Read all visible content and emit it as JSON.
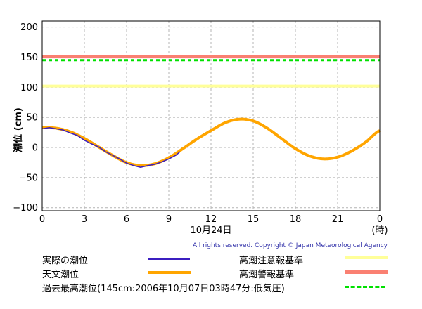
{
  "chart_data": {
    "type": "line",
    "ylabel": "潮位 (cm)",
    "xlabel": "10月24日",
    "x_unit_label": "(時)",
    "xlim": [
      0,
      24
    ],
    "ylim": [
      -105,
      210
    ],
    "x_ticks": [
      "0",
      "3",
      "6",
      "9",
      "12",
      "15",
      "18",
      "21",
      "0"
    ],
    "x_tick_values": [
      0,
      3,
      6,
      9,
      12,
      15,
      18,
      21,
      24
    ],
    "y_ticks": [
      "200",
      "150",
      "100",
      "50",
      "0",
      "−50",
      "−100"
    ],
    "y_tick_values": [
      200,
      150,
      100,
      50,
      0,
      -50,
      -100
    ],
    "grid": true,
    "thresholds": [
      {
        "name": "高潮警報基準",
        "value": 151,
        "color": "#fa8072",
        "style": "solid"
      },
      {
        "name": "過去最高潮位(145cm:2006年10月07日03時47分:低気圧)",
        "value": 145,
        "color": "#00e000",
        "style": "dashed"
      },
      {
        "name": "高潮注意報基準",
        "value": 102,
        "color": "#ffff99",
        "style": "solid"
      }
    ],
    "series": [
      {
        "name": "天文潮位",
        "color": "#ffa500",
        "x": [
          0,
          1,
          2,
          3,
          4,
          5,
          6,
          7,
          8,
          9,
          10,
          11,
          12,
          13,
          14,
          15,
          16,
          17,
          18,
          19,
          20,
          21,
          22,
          23,
          24
        ],
        "values": [
          33,
          32,
          26,
          15,
          1,
          -13,
          -25,
          -30,
          -27,
          -17,
          -2,
          14,
          28,
          41,
          47,
          44,
          32,
          15,
          -2,
          -14,
          -19,
          -16,
          -6,
          9,
          28
        ]
      },
      {
        "name": "実際の潮位",
        "color": "#3b1ec0",
        "x": [
          0,
          0.5,
          1,
          1.5,
          2,
          2.5,
          3,
          3.5,
          4,
          4.5,
          5,
          5.5,
          6,
          6.5,
          7,
          7.5,
          8,
          8.5,
          9,
          9.5,
          9.8
        ],
        "values": [
          31,
          33,
          31,
          29,
          24,
          20,
          12,
          6,
          1,
          -7,
          -13,
          -19,
          -26,
          -30,
          -33,
          -30,
          -28,
          -24,
          -19,
          -13,
          -7
        ]
      }
    ]
  },
  "legend": {
    "actual": "実際の潮位",
    "astronomical": "天文潮位",
    "record": "過去最高潮位(145cm:2006年10月07日03時47分:低気圧)",
    "advisory": "高潮注意報基準",
    "warning": "高潮警報基準"
  },
  "copyright": "All rights reserved. Copyright © Japan Meteorological Agency"
}
